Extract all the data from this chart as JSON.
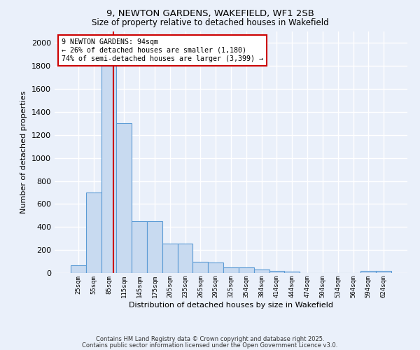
{
  "title1": "9, NEWTON GARDENS, WAKEFIELD, WF1 2SB",
  "title2": "Size of property relative to detached houses in Wakefield",
  "xlabel": "Distribution of detached houses by size in Wakefield",
  "ylabel": "Number of detached properties",
  "categories": [
    "25sqm",
    "55sqm",
    "85sqm",
    "115sqm",
    "145sqm",
    "175sqm",
    "205sqm",
    "235sqm",
    "265sqm",
    "295sqm",
    "325sqm",
    "354sqm",
    "384sqm",
    "414sqm",
    "444sqm",
    "474sqm",
    "504sqm",
    "534sqm",
    "564sqm",
    "594sqm",
    "624sqm"
  ],
  "values": [
    65,
    700,
    1800,
    1300,
    450,
    450,
    255,
    255,
    100,
    90,
    50,
    50,
    30,
    20,
    10,
    0,
    0,
    0,
    0,
    20,
    20
  ],
  "bar_color": "#c8daf0",
  "bar_edge_color": "#5b9bd5",
  "annotation_text": "9 NEWTON GARDENS: 94sqm\n← 26% of detached houses are smaller (1,180)\n74% of semi-detached houses are larger (3,399) →",
  "annotation_box_color": "#ffffff",
  "annotation_box_edge_color": "#cc0000",
  "vline_color": "#cc0000",
  "ylim": [
    0,
    2100
  ],
  "yticks": [
    0,
    200,
    400,
    600,
    800,
    1000,
    1200,
    1400,
    1600,
    1800,
    2000
  ],
  "background_color": "#eaf0fa",
  "grid_color": "#ffffff",
  "footer1": "Contains HM Land Registry data © Crown copyright and database right 2025.",
  "footer2": "Contains public sector information licensed under the Open Government Licence v3.0."
}
